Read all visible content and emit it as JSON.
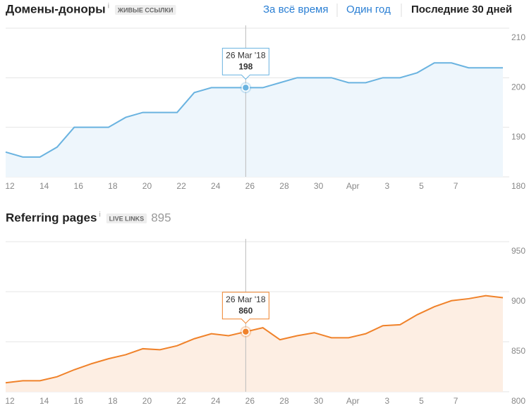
{
  "tabs": [
    "За всё время",
    "Один год",
    "Последние 30 дней"
  ],
  "active_tab": 2,
  "chart_data": [
    {
      "type": "line",
      "title": "Домены-доноры",
      "info": "i",
      "badge": "ЖИВЫЕ ССЫЛКИ",
      "categories": [
        "12",
        null,
        "14",
        null,
        "16",
        null,
        "18",
        null,
        "20",
        null,
        "22",
        null,
        "24",
        null,
        "26",
        null,
        "28",
        null,
        "30",
        null,
        "Apr",
        null,
        "3",
        null,
        "5",
        null,
        "7",
        null,
        null,
        null
      ],
      "values": [
        185,
        184,
        184,
        186,
        190,
        190,
        190,
        192,
        193,
        193,
        193,
        197,
        198,
        198,
        198,
        198,
        199,
        200,
        200,
        200,
        199,
        199,
        200,
        200,
        201,
        203,
        203,
        202,
        202,
        202
      ],
      "color": "#6ab3e0",
      "fill": "#eef6fc",
      "accent": "#3a8fd6",
      "ylim": [
        180,
        210
      ],
      "yticks": [
        180,
        190,
        200,
        210
      ],
      "grid": true,
      "tooltip": {
        "index": 14,
        "date": "26 Mar '18"
      }
    },
    {
      "type": "line",
      "title": "Referring pages",
      "info": "i",
      "badge": "LIVE LINKS",
      "count": 895,
      "categories": [
        "12",
        null,
        "14",
        null,
        "16",
        null,
        "18",
        null,
        "20",
        null,
        "22",
        null,
        "24",
        null,
        "26",
        null,
        "28",
        null,
        "30",
        null,
        "Apr",
        null,
        "3",
        null,
        "5",
        null,
        "7",
        null,
        null,
        null
      ],
      "values": [
        809,
        811,
        811,
        815,
        822,
        828,
        833,
        837,
        843,
        842,
        846,
        853,
        858,
        856,
        860,
        864,
        852,
        856,
        859,
        854,
        854,
        858,
        866,
        867,
        877,
        885,
        891,
        893,
        896,
        894
      ],
      "color": "#f0822a",
      "fill": "#fdeee3",
      "accent": "#e8701a",
      "ylim": [
        800,
        950
      ],
      "yticks": [
        800,
        850,
        900,
        950
      ],
      "grid": true,
      "tooltip": {
        "index": 14,
        "date": "26 Mar '18"
      }
    }
  ]
}
